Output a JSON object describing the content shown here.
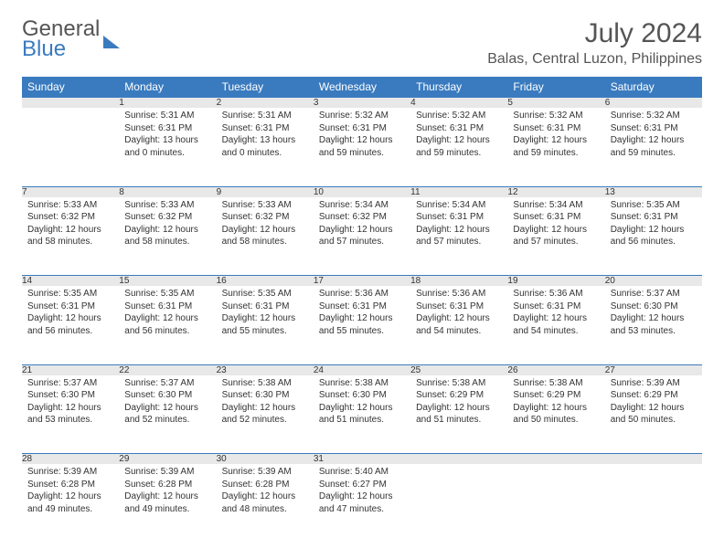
{
  "logo": {
    "line1": "General",
    "line2": "Blue"
  },
  "title": "July 2024",
  "location": "Balas, Central Luzon, Philippines",
  "colors": {
    "header_bg": "#3a7bbf",
    "daynum_bg": "#e8e8e8",
    "text": "#333333",
    "muted": "#555555"
  },
  "typography": {
    "title_fontsize": 30,
    "location_fontsize": 16,
    "th_fontsize": 12,
    "cell_fontsize": 10
  },
  "weekdays": [
    "Sunday",
    "Monday",
    "Tuesday",
    "Wednesday",
    "Thursday",
    "Friday",
    "Saturday"
  ],
  "weeks": [
    [
      null,
      {
        "n": "1",
        "sr": "Sunrise: 5:31 AM",
        "ss": "Sunset: 6:31 PM",
        "dl": "Daylight: 13 hours and 0 minutes."
      },
      {
        "n": "2",
        "sr": "Sunrise: 5:31 AM",
        "ss": "Sunset: 6:31 PM",
        "dl": "Daylight: 13 hours and 0 minutes."
      },
      {
        "n": "3",
        "sr": "Sunrise: 5:32 AM",
        "ss": "Sunset: 6:31 PM",
        "dl": "Daylight: 12 hours and 59 minutes."
      },
      {
        "n": "4",
        "sr": "Sunrise: 5:32 AM",
        "ss": "Sunset: 6:31 PM",
        "dl": "Daylight: 12 hours and 59 minutes."
      },
      {
        "n": "5",
        "sr": "Sunrise: 5:32 AM",
        "ss": "Sunset: 6:31 PM",
        "dl": "Daylight: 12 hours and 59 minutes."
      },
      {
        "n": "6",
        "sr": "Sunrise: 5:32 AM",
        "ss": "Sunset: 6:31 PM",
        "dl": "Daylight: 12 hours and 59 minutes."
      }
    ],
    [
      {
        "n": "7",
        "sr": "Sunrise: 5:33 AM",
        "ss": "Sunset: 6:32 PM",
        "dl": "Daylight: 12 hours and 58 minutes."
      },
      {
        "n": "8",
        "sr": "Sunrise: 5:33 AM",
        "ss": "Sunset: 6:32 PM",
        "dl": "Daylight: 12 hours and 58 minutes."
      },
      {
        "n": "9",
        "sr": "Sunrise: 5:33 AM",
        "ss": "Sunset: 6:32 PM",
        "dl": "Daylight: 12 hours and 58 minutes."
      },
      {
        "n": "10",
        "sr": "Sunrise: 5:34 AM",
        "ss": "Sunset: 6:32 PM",
        "dl": "Daylight: 12 hours and 57 minutes."
      },
      {
        "n": "11",
        "sr": "Sunrise: 5:34 AM",
        "ss": "Sunset: 6:31 PM",
        "dl": "Daylight: 12 hours and 57 minutes."
      },
      {
        "n": "12",
        "sr": "Sunrise: 5:34 AM",
        "ss": "Sunset: 6:31 PM",
        "dl": "Daylight: 12 hours and 57 minutes."
      },
      {
        "n": "13",
        "sr": "Sunrise: 5:35 AM",
        "ss": "Sunset: 6:31 PM",
        "dl": "Daylight: 12 hours and 56 minutes."
      }
    ],
    [
      {
        "n": "14",
        "sr": "Sunrise: 5:35 AM",
        "ss": "Sunset: 6:31 PM",
        "dl": "Daylight: 12 hours and 56 minutes."
      },
      {
        "n": "15",
        "sr": "Sunrise: 5:35 AM",
        "ss": "Sunset: 6:31 PM",
        "dl": "Daylight: 12 hours and 56 minutes."
      },
      {
        "n": "16",
        "sr": "Sunrise: 5:35 AM",
        "ss": "Sunset: 6:31 PM",
        "dl": "Daylight: 12 hours and 55 minutes."
      },
      {
        "n": "17",
        "sr": "Sunrise: 5:36 AM",
        "ss": "Sunset: 6:31 PM",
        "dl": "Daylight: 12 hours and 55 minutes."
      },
      {
        "n": "18",
        "sr": "Sunrise: 5:36 AM",
        "ss": "Sunset: 6:31 PM",
        "dl": "Daylight: 12 hours and 54 minutes."
      },
      {
        "n": "19",
        "sr": "Sunrise: 5:36 AM",
        "ss": "Sunset: 6:31 PM",
        "dl": "Daylight: 12 hours and 54 minutes."
      },
      {
        "n": "20",
        "sr": "Sunrise: 5:37 AM",
        "ss": "Sunset: 6:30 PM",
        "dl": "Daylight: 12 hours and 53 minutes."
      }
    ],
    [
      {
        "n": "21",
        "sr": "Sunrise: 5:37 AM",
        "ss": "Sunset: 6:30 PM",
        "dl": "Daylight: 12 hours and 53 minutes."
      },
      {
        "n": "22",
        "sr": "Sunrise: 5:37 AM",
        "ss": "Sunset: 6:30 PM",
        "dl": "Daylight: 12 hours and 52 minutes."
      },
      {
        "n": "23",
        "sr": "Sunrise: 5:38 AM",
        "ss": "Sunset: 6:30 PM",
        "dl": "Daylight: 12 hours and 52 minutes."
      },
      {
        "n": "24",
        "sr": "Sunrise: 5:38 AM",
        "ss": "Sunset: 6:30 PM",
        "dl": "Daylight: 12 hours and 51 minutes."
      },
      {
        "n": "25",
        "sr": "Sunrise: 5:38 AM",
        "ss": "Sunset: 6:29 PM",
        "dl": "Daylight: 12 hours and 51 minutes."
      },
      {
        "n": "26",
        "sr": "Sunrise: 5:38 AM",
        "ss": "Sunset: 6:29 PM",
        "dl": "Daylight: 12 hours and 50 minutes."
      },
      {
        "n": "27",
        "sr": "Sunrise: 5:39 AM",
        "ss": "Sunset: 6:29 PM",
        "dl": "Daylight: 12 hours and 50 minutes."
      }
    ],
    [
      {
        "n": "28",
        "sr": "Sunrise: 5:39 AM",
        "ss": "Sunset: 6:28 PM",
        "dl": "Daylight: 12 hours and 49 minutes."
      },
      {
        "n": "29",
        "sr": "Sunrise: 5:39 AM",
        "ss": "Sunset: 6:28 PM",
        "dl": "Daylight: 12 hours and 49 minutes."
      },
      {
        "n": "30",
        "sr": "Sunrise: 5:39 AM",
        "ss": "Sunset: 6:28 PM",
        "dl": "Daylight: 12 hours and 48 minutes."
      },
      {
        "n": "31",
        "sr": "Sunrise: 5:40 AM",
        "ss": "Sunset: 6:27 PM",
        "dl": "Daylight: 12 hours and 47 minutes."
      },
      null,
      null,
      null
    ]
  ]
}
